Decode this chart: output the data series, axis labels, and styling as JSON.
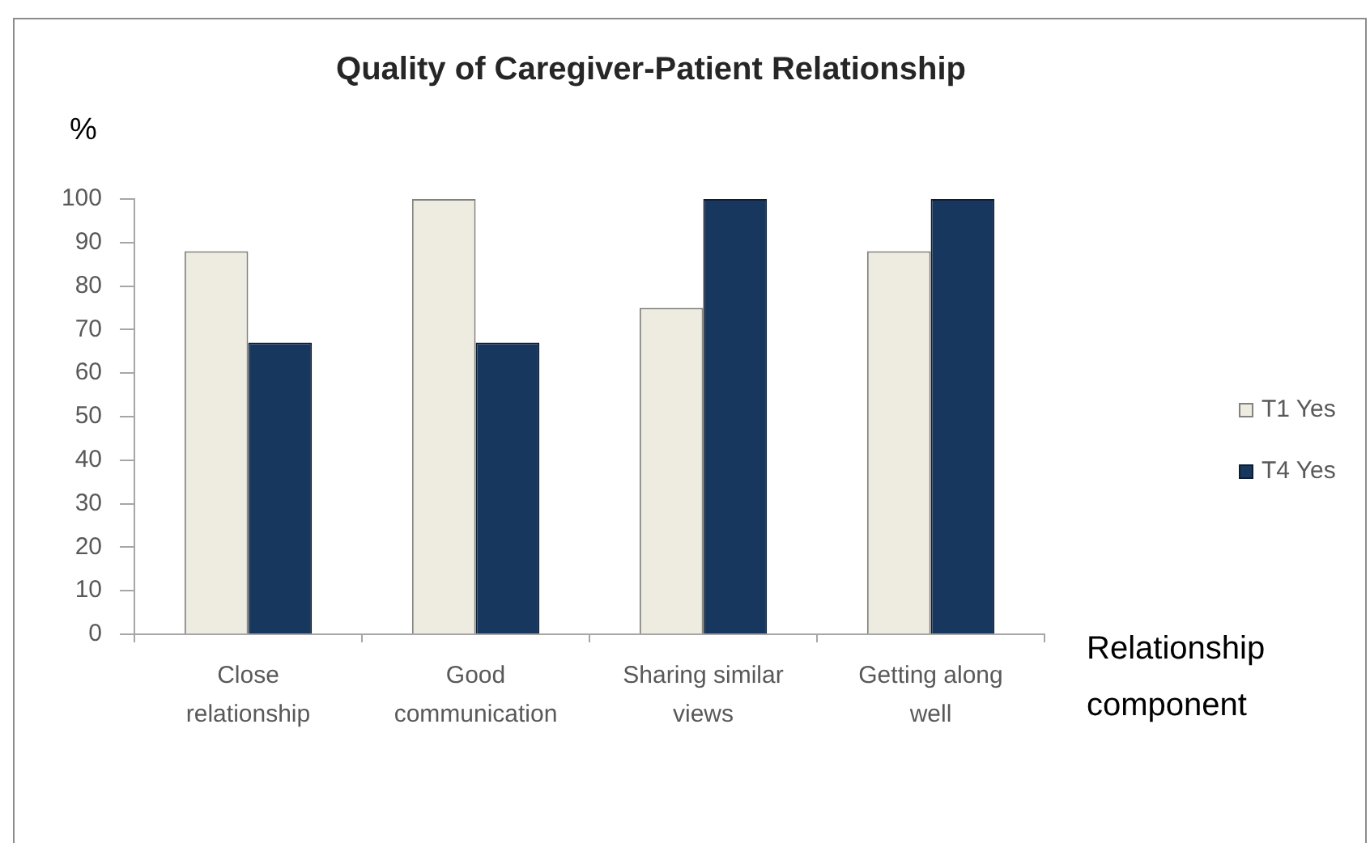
{
  "chart_data": {
    "type": "bar",
    "title": "Quality of Caregiver-Patient Relationship",
    "ylabel": "%",
    "xlabel": "Relationship component",
    "categories": [
      "Close relationship",
      "Good communication",
      "Sharing similar views",
      "Getting along well"
    ],
    "series": [
      {
        "name": "T1 Yes",
        "color": "#eeece1",
        "values": [
          88,
          100,
          75,
          88
        ]
      },
      {
        "name": "T4 Yes",
        "color": "#17375e",
        "values": [
          67,
          67,
          100,
          100
        ]
      }
    ],
    "ylim": [
      0,
      100
    ],
    "yticks": [
      0,
      10,
      20,
      30,
      40,
      50,
      60,
      70,
      80,
      90,
      100
    ],
    "legend": "right"
  }
}
